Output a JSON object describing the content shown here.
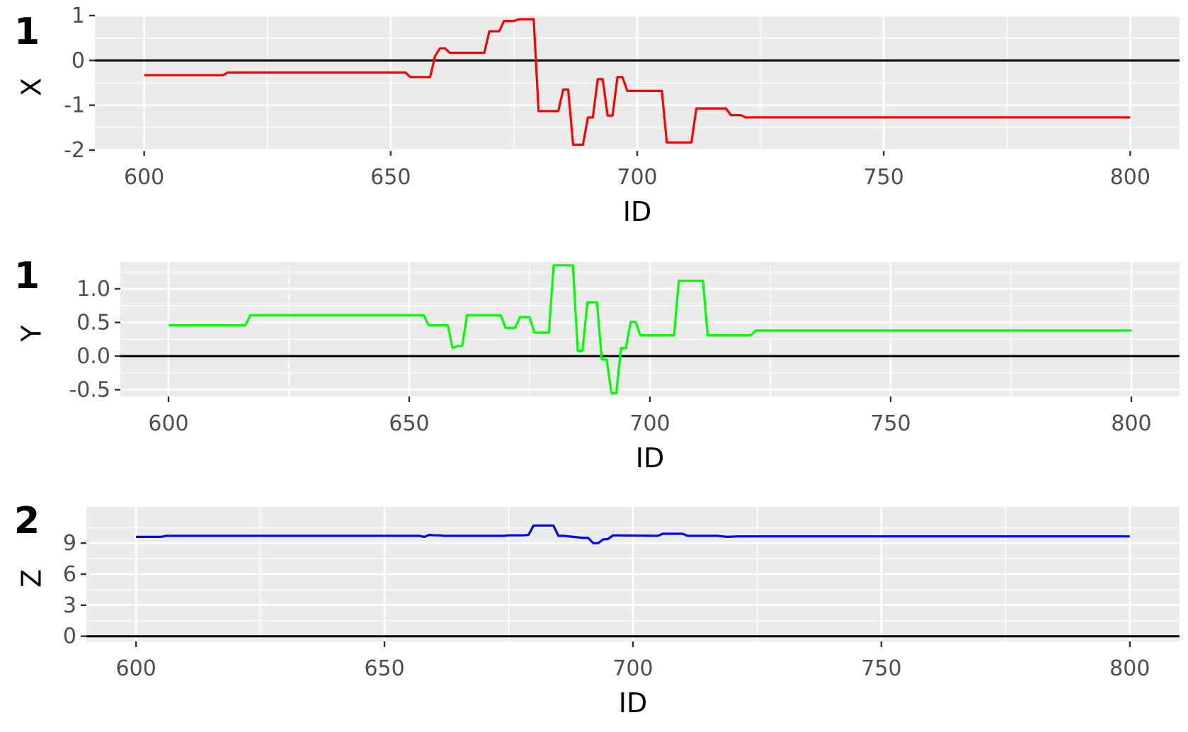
{
  "chart_data": [
    {
      "type": "line",
      "tag": "1",
      "xlabel": "ID",
      "ylabel": "X",
      "xlim": [
        590,
        810
      ],
      "ylim": [
        -2,
        1
      ],
      "xticks": [
        "600",
        "650",
        "700",
        "750",
        "800"
      ],
      "yticks": [
        "-2",
        "-1",
        "0",
        "1"
      ],
      "zero_line": true,
      "grid": true,
      "color": "#ff0000",
      "series": [
        {
          "x": [
            600,
            616,
            617,
            653,
            654,
            658,
            659,
            660,
            661,
            662,
            669,
            670,
            672,
            673,
            675,
            676,
            679,
            680,
            684,
            685,
            686,
            687,
            689,
            690,
            691,
            692,
            693,
            694,
            695,
            696,
            697,
            698,
            705,
            706,
            711,
            712,
            718,
            719,
            721,
            722,
            800
          ],
          "y": [
            -0.33,
            -0.33,
            -0.27,
            -0.27,
            -0.37,
            -0.37,
            0.1,
            0.27,
            0.27,
            0.17,
            0.17,
            0.65,
            0.65,
            0.88,
            0.88,
            0.92,
            0.92,
            -1.13,
            -1.13,
            -0.65,
            -0.65,
            -1.88,
            -1.88,
            -1.27,
            -1.27,
            -0.42,
            -0.42,
            -1.23,
            -1.23,
            -0.37,
            -0.37,
            -0.68,
            -0.68,
            -1.83,
            -1.83,
            -1.07,
            -1.07,
            -1.22,
            -1.22,
            -1.27,
            -1.27
          ]
        }
      ]
    },
    {
      "type": "line",
      "tag": "1",
      "xlabel": "ID",
      "ylabel": "Y",
      "xlim": [
        590,
        810
      ],
      "ylim": [
        -0.6,
        1.4
      ],
      "xticks": [
        "600",
        "650",
        "700",
        "750",
        "800"
      ],
      "yticks": [
        "-0.5",
        "0.0",
        "0.5",
        "1.0"
      ],
      "zero_line": true,
      "grid": true,
      "color": "#00ff00",
      "series": [
        {
          "x": [
            600,
            616,
            617,
            653,
            654,
            658,
            659,
            660,
            661,
            662,
            669,
            670,
            672,
            673,
            675,
            676,
            679,
            680,
            684,
            685,
            686,
            687,
            689,
            690,
            691,
            692,
            693,
            694,
            695,
            696,
            697,
            698,
            705,
            706,
            711,
            712,
            721,
            722,
            800
          ],
          "y": [
            0.46,
            0.46,
            0.61,
            0.61,
            0.46,
            0.46,
            0.12,
            0.15,
            0.15,
            0.61,
            0.61,
            0.42,
            0.42,
            0.58,
            0.58,
            0.35,
            0.35,
            1.35,
            1.35,
            0.08,
            0.08,
            0.8,
            0.8,
            -0.05,
            -0.05,
            -0.55,
            -0.55,
            0.12,
            0.12,
            0.51,
            0.51,
            0.31,
            0.31,
            1.12,
            1.12,
            0.31,
            0.31,
            0.38,
            0.38
          ]
        }
      ]
    },
    {
      "type": "line",
      "tag": "2",
      "xlabel": "ID",
      "ylabel": "Z",
      "xlim": [
        590,
        810
      ],
      "ylim": [
        -0.5,
        12.5
      ],
      "xticks": [
        "600",
        "650",
        "700",
        "750",
        "800"
      ],
      "yticks": [
        "0",
        "3",
        "6",
        "9"
      ],
      "zero_line": true,
      "grid": true,
      "color": "#0000ff",
      "series": [
        {
          "x": [
            600,
            605,
            606,
            657,
            658,
            659,
            660,
            661,
            662,
            674,
            675,
            678,
            679,
            680,
            683,
            684,
            685,
            686,
            690,
            691,
            692,
            693,
            694,
            695,
            696,
            705,
            706,
            710,
            711,
            717,
            719,
            721,
            800
          ],
          "y": [
            9.6,
            9.6,
            9.7,
            9.7,
            9.6,
            9.8,
            9.75,
            9.75,
            9.7,
            9.7,
            9.75,
            9.75,
            9.8,
            10.7,
            10.7,
            10.7,
            9.7,
            9.7,
            9.5,
            9.5,
            9.0,
            9.0,
            9.35,
            9.4,
            9.75,
            9.7,
            9.9,
            9.9,
            9.7,
            9.7,
            9.6,
            9.65,
            9.65
          ]
        }
      ]
    }
  ]
}
